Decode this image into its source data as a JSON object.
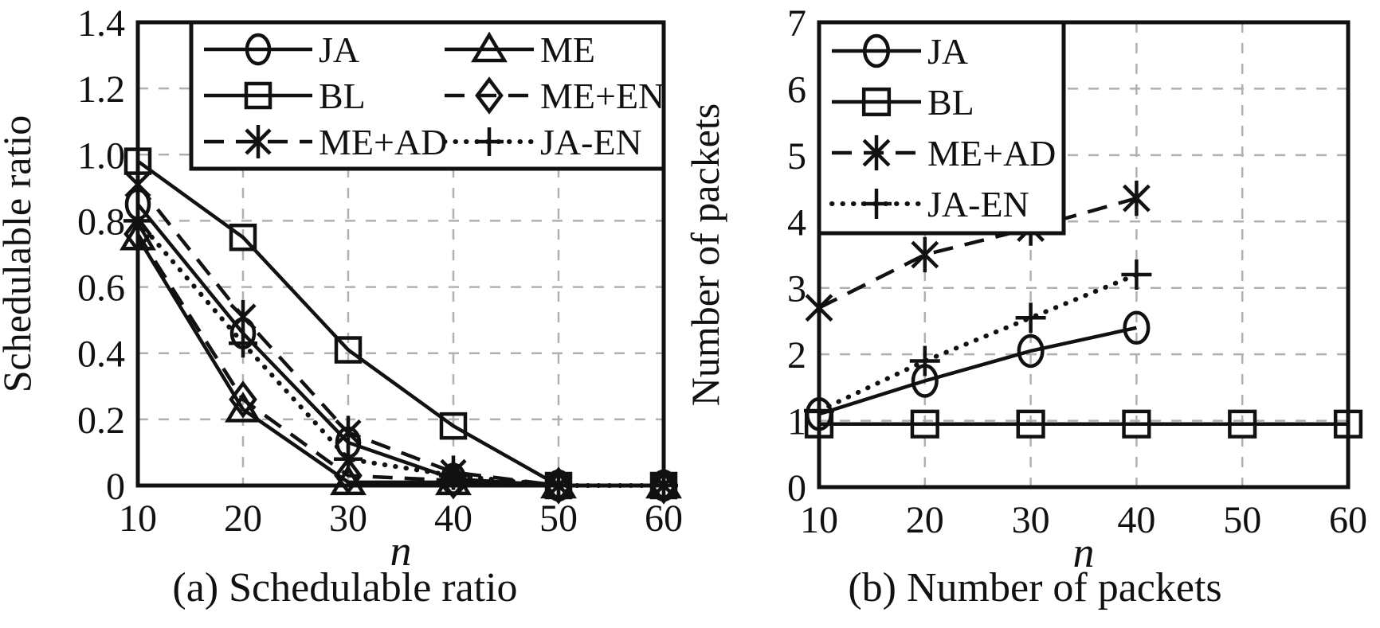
{
  "figure": {
    "background": "#ffffff",
    "ink": "#111111",
    "grid_color": "#b0b0b0"
  },
  "chart_data": [
    {
      "id": "a",
      "type": "line",
      "title": "(a) Schedulable ratio",
      "xlabel": "n",
      "ylabel": "Schedulable ratio",
      "xlim": [
        10,
        60
      ],
      "ylim": [
        0,
        1.4
      ],
      "xticks": [
        10,
        20,
        30,
        40,
        50,
        60
      ],
      "ytick_values": [
        0,
        0.2,
        0.4,
        0.6,
        0.8,
        1.0,
        1.2,
        1.4
      ],
      "ytick_labels": [
        "0",
        "0.2",
        "0.4",
        "0.6",
        "0.8",
        "1.0",
        "1.2",
        "1.4"
      ],
      "grid": true,
      "legend_position": "top",
      "x": [
        10,
        20,
        30,
        40,
        50,
        60
      ],
      "series": [
        {
          "name": "JA",
          "marker": "circle",
          "line": "solid",
          "values": [
            0.85,
            0.46,
            0.13,
            0.02,
            0,
            0
          ]
        },
        {
          "name": "BL",
          "marker": "square",
          "line": "solid",
          "values": [
            0.98,
            0.75,
            0.41,
            0.18,
            0,
            0
          ]
        },
        {
          "name": "ME+AD",
          "marker": "asterisk",
          "line": "dashed",
          "values": [
            0.91,
            0.51,
            0.16,
            0.04,
            0,
            0
          ]
        },
        {
          "name": "ME",
          "marker": "triangle",
          "line": "solid",
          "values": [
            0.75,
            0.23,
            0.01,
            0.01,
            0,
            0
          ]
        },
        {
          "name": "ME+EN",
          "marker": "diamond",
          "line": "dashed",
          "values": [
            0.76,
            0.26,
            0.03,
            0.015,
            0,
            0
          ]
        },
        {
          "name": "JA-EN",
          "marker": "plus",
          "line": "dotted",
          "values": [
            0.8,
            0.43,
            0.08,
            0.03,
            0,
            0
          ]
        }
      ],
      "legend_order": [
        [
          "JA",
          "BL",
          "ME+AD"
        ],
        [
          "ME",
          "ME+EN",
          "JA-EN"
        ]
      ]
    },
    {
      "id": "b",
      "type": "line",
      "title": "(b) Number of packets",
      "xlabel": "n",
      "ylabel": "Number of packets",
      "xlim": [
        10,
        60
      ],
      "ylim": [
        0,
        7
      ],
      "xticks": [
        10,
        20,
        30,
        40,
        50,
        60
      ],
      "ytick_values": [
        0,
        1,
        2,
        3,
        4,
        5,
        6,
        7
      ],
      "ytick_labels": [
        "0",
        "1",
        "2",
        "3",
        "4",
        "5",
        "6",
        "7"
      ],
      "grid": true,
      "legend_position": "top-left",
      "x": [
        10,
        20,
        30,
        40,
        50,
        60
      ],
      "series": [
        {
          "name": "JA",
          "marker": "circle",
          "line": "solid",
          "values": [
            1.1,
            1.6,
            2.05,
            2.4,
            null,
            null
          ]
        },
        {
          "name": "BL",
          "marker": "square",
          "line": "solid",
          "values": [
            0.95,
            0.95,
            0.95,
            0.95,
            0.95,
            0.95
          ]
        },
        {
          "name": "ME+AD",
          "marker": "asterisk",
          "line": "dashed",
          "values": [
            2.7,
            3.5,
            3.9,
            4.35,
            null,
            null
          ]
        },
        {
          "name": "JA-EN",
          "marker": "plus",
          "line": "dotted",
          "values": [
            1.15,
            1.9,
            2.55,
            3.2,
            null,
            null
          ]
        }
      ],
      "legend_order": [
        [
          "JA",
          "BL",
          "ME+AD",
          "JA-EN"
        ]
      ]
    }
  ]
}
